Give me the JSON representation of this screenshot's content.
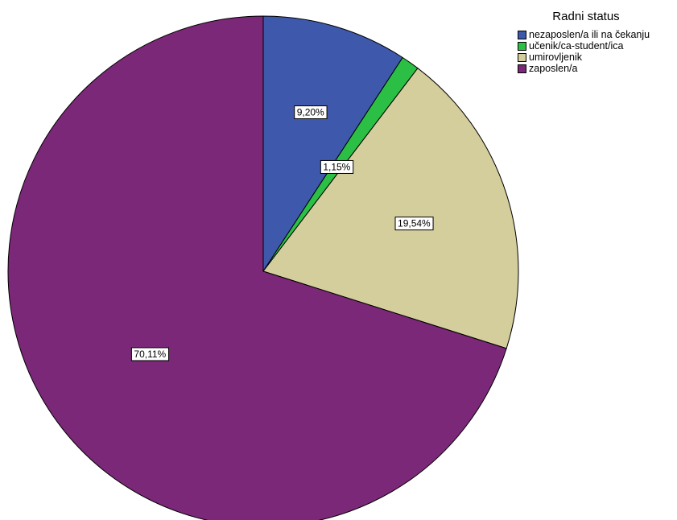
{
  "chart_data": {
    "type": "pie",
    "legend_title": "Radni status",
    "legend_position": "top-right",
    "slices": [
      {
        "name": "nezaposlen/a ili na čekanju",
        "value": 9.2,
        "label": "9,20%",
        "color": "#3e58ac"
      },
      {
        "name": "učenik/ca-student/ica",
        "value": 1.15,
        "label": "1,15%",
        "color": "#2cbf46"
      },
      {
        "name": "umirovljenik",
        "value": 19.54,
        "label": "19,54%",
        "color": "#d4ce9c"
      },
      {
        "name": "zaposlen/a",
        "value": 70.11,
        "label": "70,11%",
        "color": "#7a2877"
      }
    ]
  }
}
